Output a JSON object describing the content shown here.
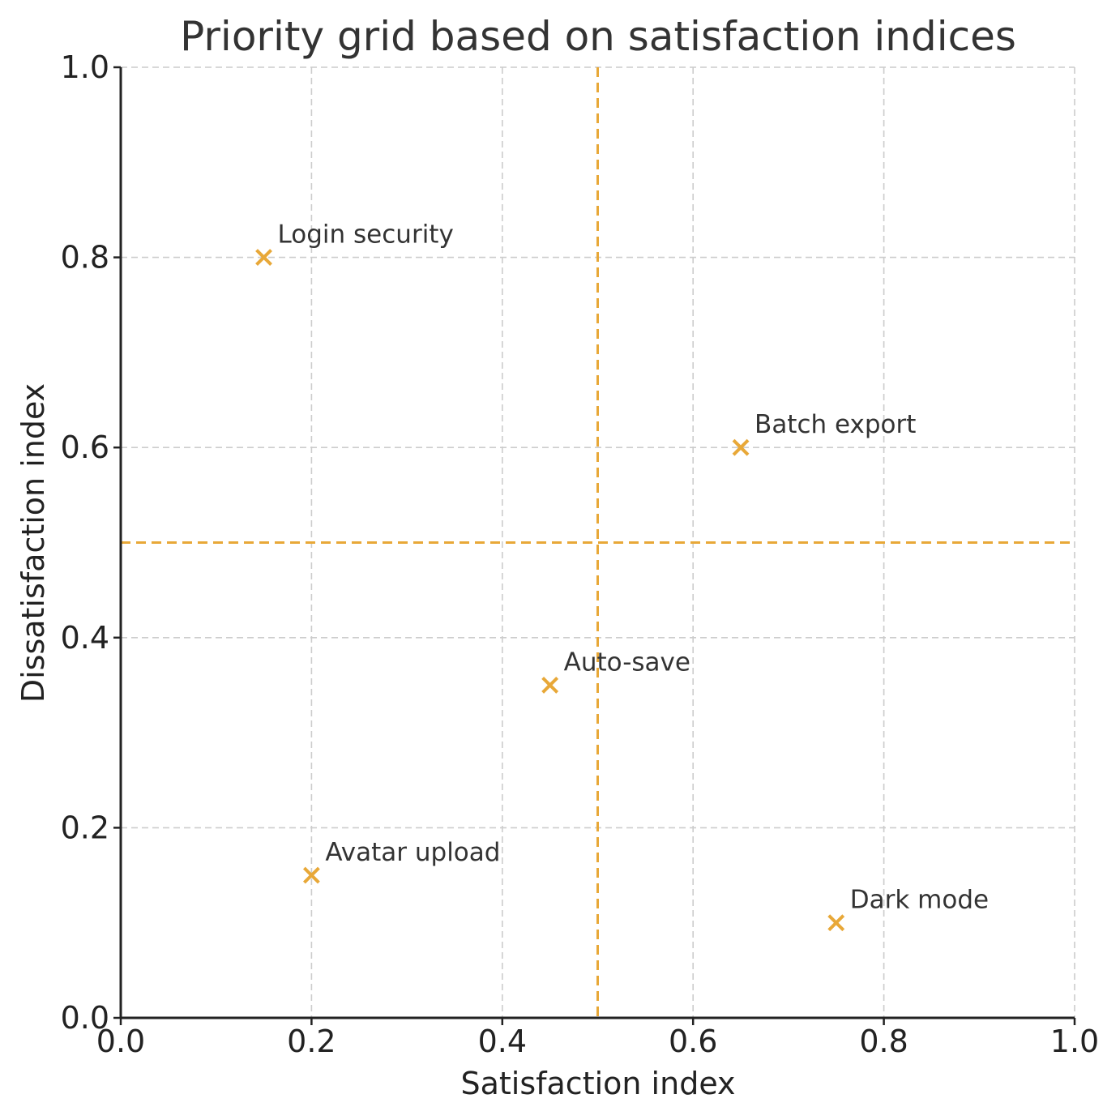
{
  "chart_data": {
    "type": "scatter",
    "title": "Priority grid based on satisfaction indices",
    "xlabel": "Satisfaction index",
    "ylabel": "Dissatisfaction index",
    "xlim": [
      0.0,
      1.0
    ],
    "ylim": [
      0.0,
      1.0
    ],
    "xticks": [
      "0.0",
      "0.2",
      "0.4",
      "0.6",
      "0.8",
      "1.0"
    ],
    "yticks": [
      "0.0",
      "0.2",
      "0.4",
      "0.6",
      "0.8",
      "1.0"
    ],
    "grid": true,
    "marker": "x",
    "color": "#E8A838",
    "thresholds": {
      "x": 0.5,
      "y": 0.5
    },
    "points": [
      {
        "label": "Login security",
        "x": 0.15,
        "y": 0.8
      },
      {
        "label": "Batch export",
        "x": 0.65,
        "y": 0.6
      },
      {
        "label": "Auto-save",
        "x": 0.45,
        "y": 0.35
      },
      {
        "label": "Avatar upload",
        "x": 0.2,
        "y": 0.15
      },
      {
        "label": "Dark mode",
        "x": 0.75,
        "y": 0.1
      }
    ]
  }
}
